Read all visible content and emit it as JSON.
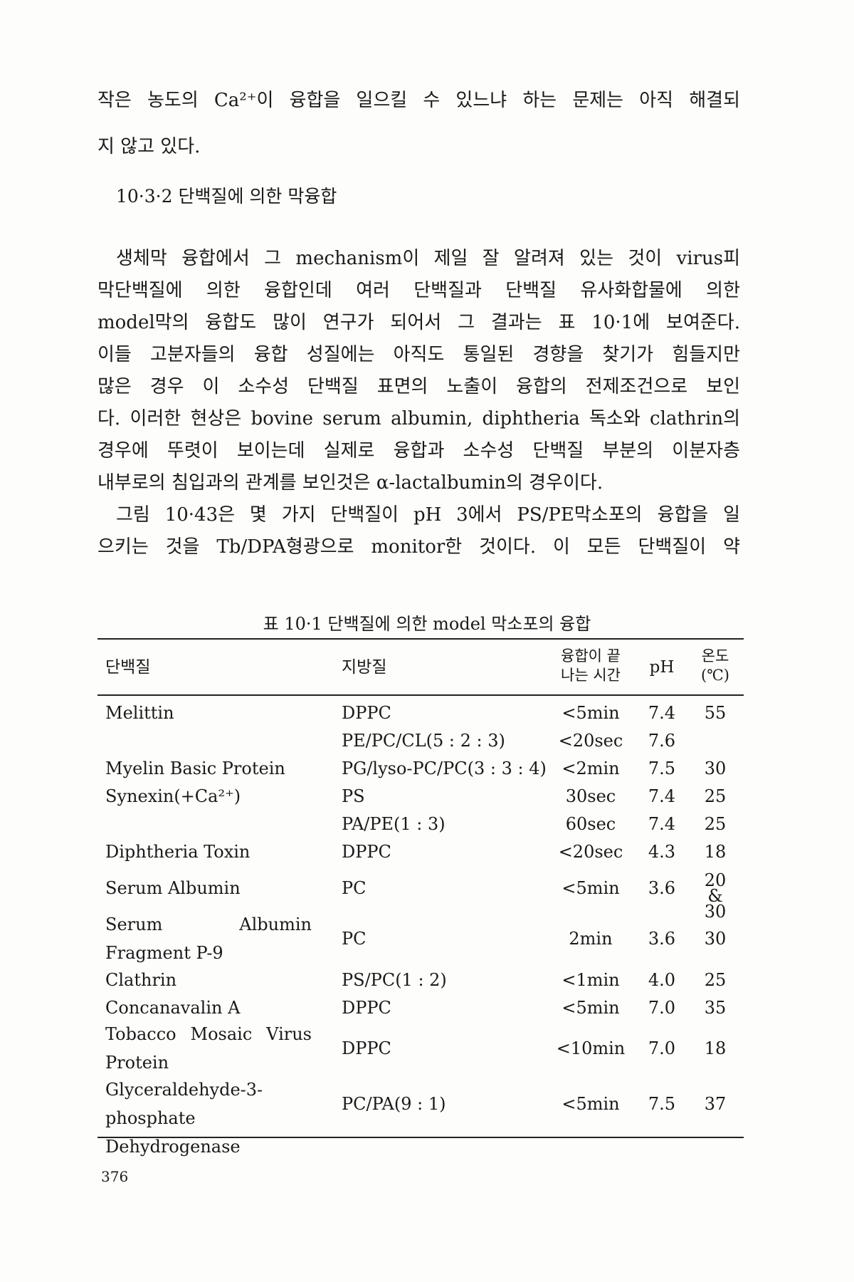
{
  "body_lines_top": [
    "작은 농도의 Ca²⁺이 융합을 일으킬 수 있느냐 하는 문제는 아직 해결되",
    "지 않고 있다."
  ],
  "section_heading": "10·3·2  단백질에 의한 막융합",
  "body_lines": [
    "생체막 융합에서 그 mechanism이 제일 잘 알려져 있는 것이 virus피",
    "막단백질에 의한 융합인데 여러 단백질과 단백질 유사화합물에 의한",
    "model막의 융합도 많이 연구가 되어서 그 결과는 표 10·1에 보여준다.",
    "이들 고분자들의 융합 성질에는 아직도 통일된 경향을 찾기가 힘들지만",
    "많은 경우 이 소수성 단백질 표면의 노출이 융합의 전제조건으로 보인",
    "다. 이러한 현상은 bovine serum albumin, diphtheria 독소와 clathrin의",
    "경우에 뚜렷이 보이는데 실제로 융합과 소수성 단백질 부분의 이분자층",
    "내부로의 침입과의 관계를 보인것은 α-lactalbumin의 경우이다.",
    "그림 10·43은 몇 가지 단백질이 pH 3에서 PS/PE막소포의 융합을 일",
    "으키는 것을 Tb/DPA형광으로 monitor한 것이다. 이 모든 단백질이 약"
  ],
  "table": {
    "caption": "표 10·1  단백질에 의한 model 막소포의 융합",
    "headers": {
      "protein": "단백질",
      "lipid": "지방질",
      "time_line1": "융합이  끝",
      "time_line2": "나는 시간",
      "ph": "pH",
      "temp_line1": "온도",
      "temp_line2": "(℃)"
    },
    "rows": [
      {
        "protein": "Melittin",
        "lipid": "DPPC",
        "time": "<5min",
        "ph": "7.4",
        "temp": "55"
      },
      {
        "protein": "",
        "lipid": "PE/PC/CL(5 : 2 : 3)",
        "time": "<20sec",
        "ph": "7.6",
        "temp": ""
      },
      {
        "protein": "Myelin Basic Protein",
        "lipid": "PG/lyso-PC/PC(3 : 3 : 4)",
        "time": "<2min",
        "ph": "7.5",
        "temp": "30"
      },
      {
        "protein": "Synexin(+Ca²⁺)",
        "lipid": "PS",
        "time": "30sec",
        "ph": "7.4",
        "temp": "25"
      },
      {
        "protein": "",
        "lipid": "PA/PE(1 : 3)",
        "time": "60sec",
        "ph": "7.4",
        "temp": "25"
      },
      {
        "protein": "Diphtheria Toxin",
        "lipid": "DPPC",
        "time": "<20sec",
        "ph": "4.3",
        "temp": "18"
      },
      {
        "protein": "Serum Albumin",
        "lipid": "PC",
        "time": "<5min",
        "ph": "3.6",
        "temp": "20 & 30"
      },
      {
        "protein": "Serum Albumin Fragment P-9",
        "lipid": "PC",
        "time": "2min",
        "ph": "3.6",
        "temp": "30"
      },
      {
        "protein": "Clathrin",
        "lipid": "PS/PC(1 : 2)",
        "time": "<1min",
        "ph": "4.0",
        "temp": "25"
      },
      {
        "protein": "Concanavalin A",
        "lipid": "DPPC",
        "time": "<5min",
        "ph": "7.0",
        "temp": "35"
      },
      {
        "protein": "Tobacco Mosaic Virus Protein",
        "lipid": "DPPC",
        "time": "<10min",
        "ph": "7.0",
        "temp": "18"
      },
      {
        "protein": "Glyceraldehyde-3-phosphate Dehydrogenase",
        "lipid": "PC/PA(9 : 1)",
        "time": "<5min",
        "ph": "7.5",
        "temp": "37"
      }
    ]
  },
  "page_number": "376"
}
